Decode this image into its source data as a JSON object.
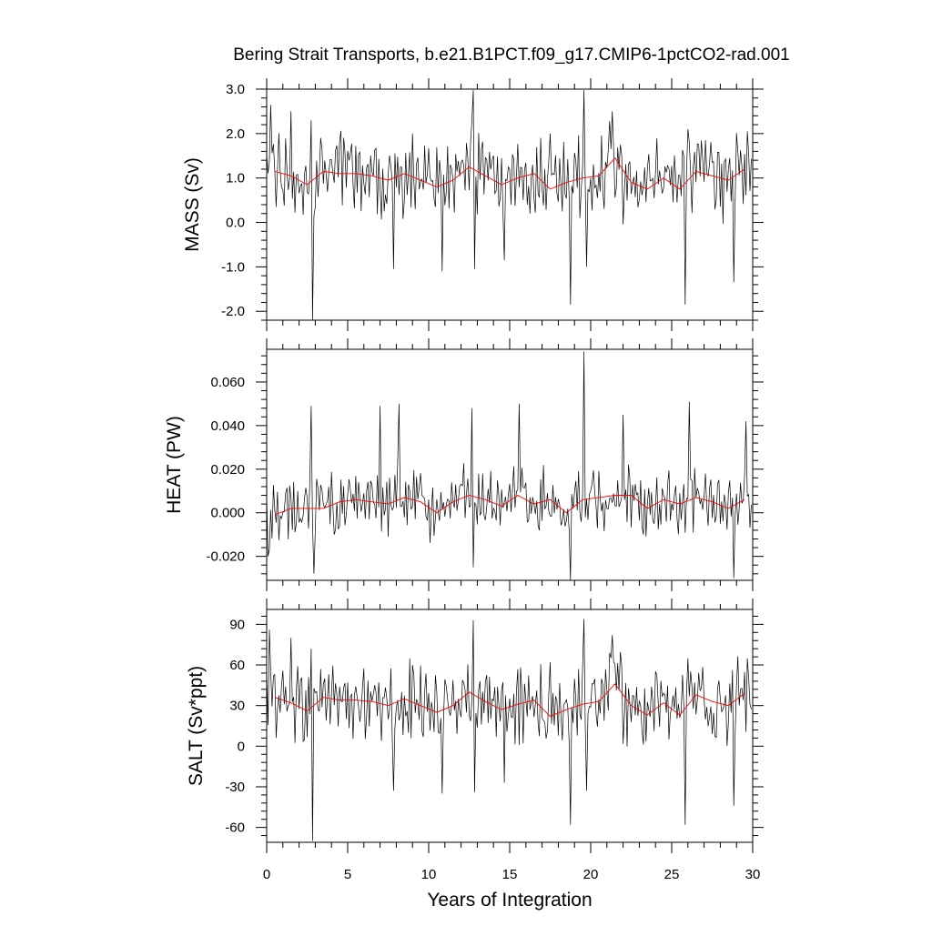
{
  "chart_data": {
    "type": "line",
    "title": "Bering Strait Transports, b.e21.B1PCT.f09_g17.CMIP6-1pctCO2-rad.001",
    "xlabel": "Years of Integration",
    "xlim": [
      0,
      30
    ],
    "xticks": [
      "0",
      "5",
      "10",
      "15",
      "20",
      "25",
      "30"
    ],
    "colors": {
      "monthly": "#000000",
      "annual": "#ff0000"
    },
    "panels": [
      {
        "id": "mass",
        "ylabel": "MASS (Sv)",
        "ylim": [
          -2.2,
          3.0
        ],
        "yticks": [
          3.0,
          2.0,
          1.0,
          0.0,
          -1.0,
          -2.0
        ],
        "yticklabels": [
          "3.0",
          "2.0",
          "1.0",
          "0.0",
          "-1.0",
          "-2.0"
        ],
        "annual": [
          1.15,
          1.05,
          0.85,
          1.15,
          1.1,
          1.1,
          1.05,
          0.95,
          1.1,
          0.95,
          0.8,
          0.95,
          1.25,
          1.05,
          0.85,
          1.0,
          1.1,
          0.75,
          0.9,
          1.0,
          1.05,
          1.45,
          0.9,
          0.75,
          1.0,
          0.75,
          1.15,
          1.05,
          0.95,
          1.2
        ],
        "monthly_mean": 1.0,
        "monthly_amp": 0.75,
        "spikes": [
          [
            0.25,
            2.65
          ],
          [
            1.5,
            2.5
          ],
          [
            2.75,
            2.3
          ],
          [
            2.85,
            -2.2
          ],
          [
            7.8,
            2.75
          ],
          [
            7.85,
            -1.05
          ],
          [
            9.0,
            2.0
          ],
          [
            10.8,
            -1.1
          ],
          [
            12.75,
            2.98
          ],
          [
            12.85,
            -1.05
          ],
          [
            14.7,
            -0.85
          ],
          [
            17.5,
            2.0
          ],
          [
            18.75,
            -1.85
          ],
          [
            19.6,
            2.98
          ],
          [
            19.75,
            -1.0
          ],
          [
            21.3,
            2.5
          ],
          [
            25.85,
            -1.85
          ],
          [
            26.0,
            2.1
          ],
          [
            28.8,
            -1.35
          ],
          [
            29.7,
            2.05
          ]
        ]
      },
      {
        "id": "heat",
        "ylabel": "HEAT (PW)",
        "ylim": [
          -0.031,
          0.075
        ],
        "yticks": [
          0.06,
          0.04,
          0.02,
          0.0,
          -0.02
        ],
        "yticklabels": [
          "0.060",
          "0.040",
          "0.020",
          "0.000",
          "-0.020"
        ],
        "annual": [
          -0.001,
          0.002,
          0.002,
          0.002,
          0.005,
          0.006,
          0.005,
          0.004,
          0.007,
          0.005,
          0.0,
          0.005,
          0.008,
          0.006,
          0.003,
          0.008,
          0.004,
          0.006,
          0.0,
          0.006,
          0.007,
          0.008,
          0.008,
          0.002,
          0.006,
          0.004,
          0.007,
          0.005,
          0.002,
          0.006
        ],
        "monthly_mean": 0.003,
        "monthly_amp": 0.012,
        "spikes": [
          [
            0.1,
            -0.02
          ],
          [
            2.75,
            0.049
          ],
          [
            2.9,
            -0.028
          ],
          [
            7.0,
            0.049
          ],
          [
            8.2,
            0.05
          ],
          [
            12.65,
            0.048
          ],
          [
            12.75,
            -0.025
          ],
          [
            15.6,
            0.05
          ],
          [
            18.75,
            -0.031
          ],
          [
            19.6,
            0.074
          ],
          [
            22.0,
            0.045
          ],
          [
            26.1,
            0.051
          ],
          [
            28.8,
            -0.03
          ],
          [
            29.6,
            0.042
          ]
        ]
      },
      {
        "id": "salt",
        "ylabel": "SALT (Sv*ppt)",
        "ylim": [
          -71,
          101
        ],
        "yticks": [
          90,
          60,
          30,
          0,
          -30,
          -60
        ],
        "yticklabels": [
          "90",
          "60",
          "30",
          "0",
          "-30",
          "-60"
        ],
        "annual": [
          36,
          32,
          26,
          36,
          34,
          34,
          33,
          30,
          35,
          30,
          25,
          30,
          40,
          33,
          27,
          31,
          34,
          22,
          27,
          31,
          33,
          46,
          30,
          23,
          32,
          23,
          38,
          33,
          30,
          39
        ],
        "monthly_mean": 32,
        "monthly_amp": 22,
        "spikes": [
          [
            0.2,
            86
          ],
          [
            1.5,
            80
          ],
          [
            2.75,
            72
          ],
          [
            2.85,
            -70
          ],
          [
            7.8,
            86
          ],
          [
            7.85,
            -33
          ],
          [
            9.0,
            60
          ],
          [
            10.8,
            -35
          ],
          [
            12.75,
            93
          ],
          [
            12.85,
            -34
          ],
          [
            14.7,
            -27
          ],
          [
            17.5,
            62
          ],
          [
            18.75,
            -58
          ],
          [
            19.6,
            94
          ],
          [
            19.75,
            -33
          ],
          [
            21.3,
            82
          ],
          [
            25.85,
            -58
          ],
          [
            26.0,
            65
          ],
          [
            28.8,
            -44
          ],
          [
            29.7,
            65
          ]
        ]
      }
    ]
  }
}
